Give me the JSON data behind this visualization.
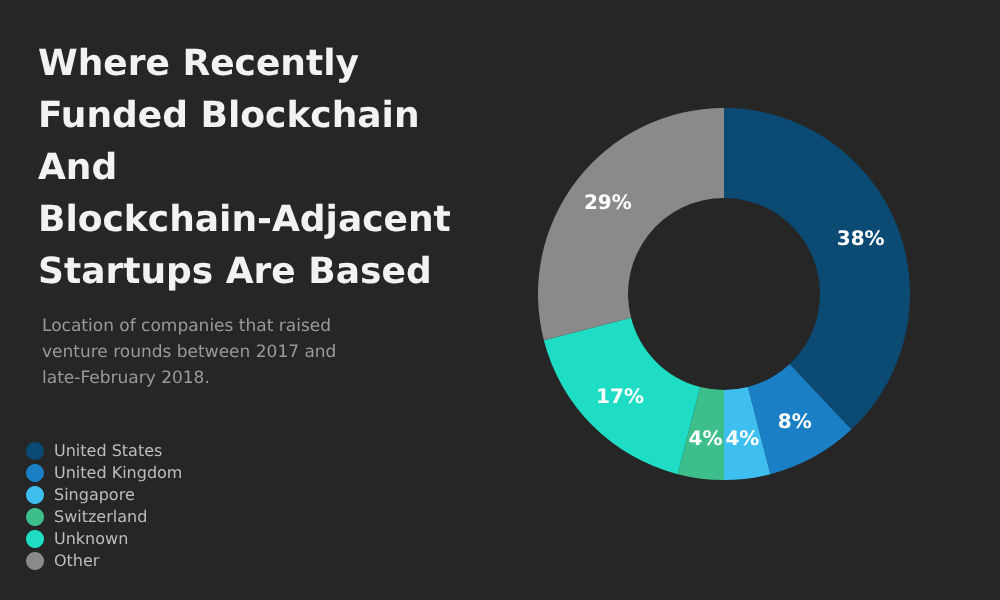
{
  "chart_data": {
    "type": "donut",
    "title": "Where Recently Funded Blockchain And Blockchain-Adjacent Startups Are Based",
    "subtitle": "Location of companies that raised venture rounds between 2017 and late-February 2018.",
    "categories": [
      "United States",
      "United Kingdom",
      "Singapore",
      "Switzerland",
      "Unknown",
      "Other"
    ],
    "values": [
      38,
      8,
      4,
      4,
      17,
      29
    ],
    "value_labels": [
      "38%",
      "8%",
      "4%",
      "4%",
      "17%",
      "29%"
    ],
    "colors": [
      "#0b4a72",
      "#1a7fc4",
      "#3fbff0",
      "#3dbf8c",
      "#1fdcc4",
      "#8a8a8a"
    ],
    "legend": "bottom left"
  }
}
